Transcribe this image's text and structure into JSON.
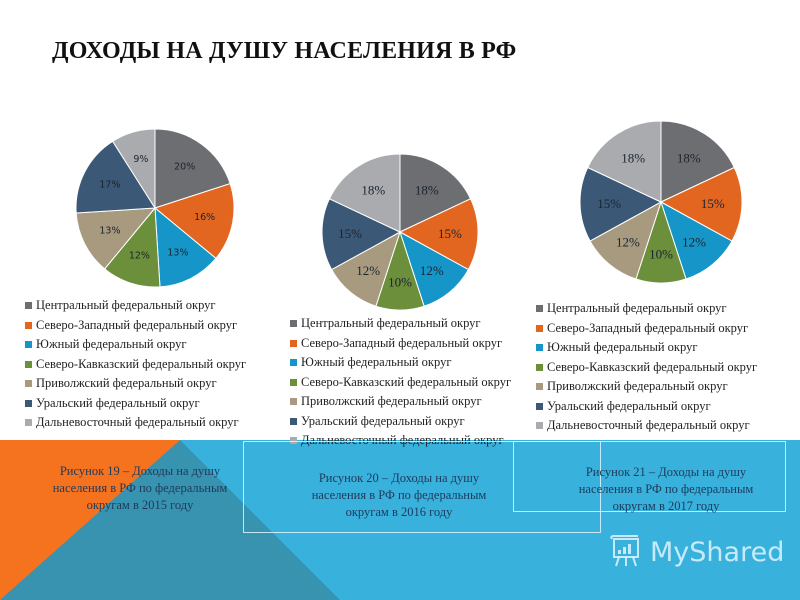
{
  "page": {
    "title": "ДОХОДЫ НА ДУШУ НАСЕЛЕНИЯ В РФ"
  },
  "colors": {
    "central": "#6d6e71",
    "northwest": "#e2661f",
    "south": "#1595c8",
    "north_caucasus": "#6b8f3a",
    "volga": "#a89a7f",
    "ural": "#3b5876",
    "far_east": "#a9abae",
    "band_light_blue": "#39b1dd",
    "band_teal": "#3893b0",
    "band_orange": "#f5721f"
  },
  "legend": {
    "items": [
      {
        "label": "Центральный федеральный округ",
        "color": "#6d6e71"
      },
      {
        "label": "Северо-Западный федеральный округ",
        "color": "#e2661f"
      },
      {
        "label": "Южный федеральный округ",
        "color": "#1595c8"
      },
      {
        "label": "Северо-Кавказский федеральный округ",
        "color": "#6b8f3a"
      },
      {
        "label": "Приволжский федеральный округ",
        "color": "#a89a7f"
      },
      {
        "label": "Уральский федеральный округ",
        "color": "#3b5876"
      },
      {
        "label": "Дальневосточный федеральный округ",
        "color": "#a9abae"
      }
    ]
  },
  "captions": [
    "Рисунок 19 – Доходы на душу населения в РФ по федеральным округам в 2015 году",
    "Рисунок 20 – Доходы на душу населения в РФ по федеральным округам в 2016 году",
    "Рисунок 21 – Доходы на душу населения в РФ по федеральным округам в 2017 году"
  ],
  "brand": {
    "name": "MyShared"
  },
  "chart_data": [
    {
      "type": "pie",
      "title": "Рисунок 19 – Доходы на душу населения в РФ по федеральным округам в 2015 году",
      "categories": [
        "Центральный федеральный округ",
        "Северо-Западный федеральный округ",
        "Южный федеральный округ",
        "Северо-Кавказский федеральный округ",
        "Приволжский федеральный округ",
        "Уральский федеральный округ",
        "Дальневосточный федеральный округ"
      ],
      "values": [
        20,
        16,
        13,
        12,
        13,
        17,
        9
      ],
      "labels": [
        "20%",
        "16%",
        "13%",
        "12%",
        "13%",
        "17%",
        "9%"
      ],
      "legend_position": "bottom"
    },
    {
      "type": "pie",
      "title": "Рисунок 20 – Доходы на душу населения в РФ по федеральным округам в 2016 году",
      "categories": [
        "Центральный федеральный округ",
        "Северо-Западный федеральный округ",
        "Южный федеральный округ",
        "Северо-Кавказский федеральный округ",
        "Приволжский федеральный округ",
        "Уральский федеральный округ",
        "Дальневосточный федеральный округ"
      ],
      "values": [
        18,
        15,
        12,
        10,
        12,
        15,
        18
      ],
      "labels": [
        "18%",
        "15%",
        "12%",
        "10%",
        "12%",
        "15%",
        "18%"
      ],
      "legend_position": "bottom"
    },
    {
      "type": "pie",
      "title": "Рисунок 21 – Доходы на душу населения в РФ по федеральным округам в 2017 году",
      "categories": [
        "Центральный федеральный округ",
        "Северо-Западный федеральный округ",
        "Южный федеральный округ",
        "Северо-Кавказский федеральный округ",
        "Приволжский федеральный округ",
        "Уральский федеральный округ",
        "Дальневосточный федеральный округ"
      ],
      "values": [
        18,
        15,
        12,
        10,
        12,
        15,
        18
      ],
      "labels": [
        "18%",
        "15%",
        "12%",
        "10%",
        "12%",
        "15%",
        "18%"
      ],
      "legend_position": "bottom"
    }
  ]
}
